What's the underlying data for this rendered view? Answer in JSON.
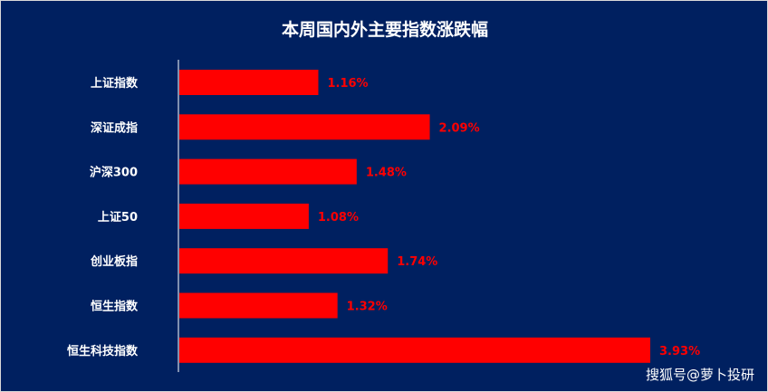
{
  "chart_data": {
    "type": "bar",
    "orientation": "horizontal",
    "title": "本周国内外主要指数涨跌幅",
    "categories": [
      "上证指数",
      "深证成指",
      "沪深300",
      "上证50",
      "创业板指",
      "恒生指数",
      "恒生科技指数"
    ],
    "values": [
      1.16,
      2.09,
      1.48,
      1.08,
      1.74,
      1.32,
      3.93
    ],
    "data_labels": [
      "1.16%",
      "2.09%",
      "1.48%",
      "1.08%",
      "1.74%",
      "1.32%",
      "3.93%"
    ],
    "xlim": [
      0,
      3.93
    ],
    "grid": false,
    "legend": "none",
    "colors": {
      "background": "#002060",
      "bar": "#ff0000",
      "label": "#ff0000",
      "text": "#ffffff"
    }
  },
  "watermark": "搜狐号@萝卜投研"
}
